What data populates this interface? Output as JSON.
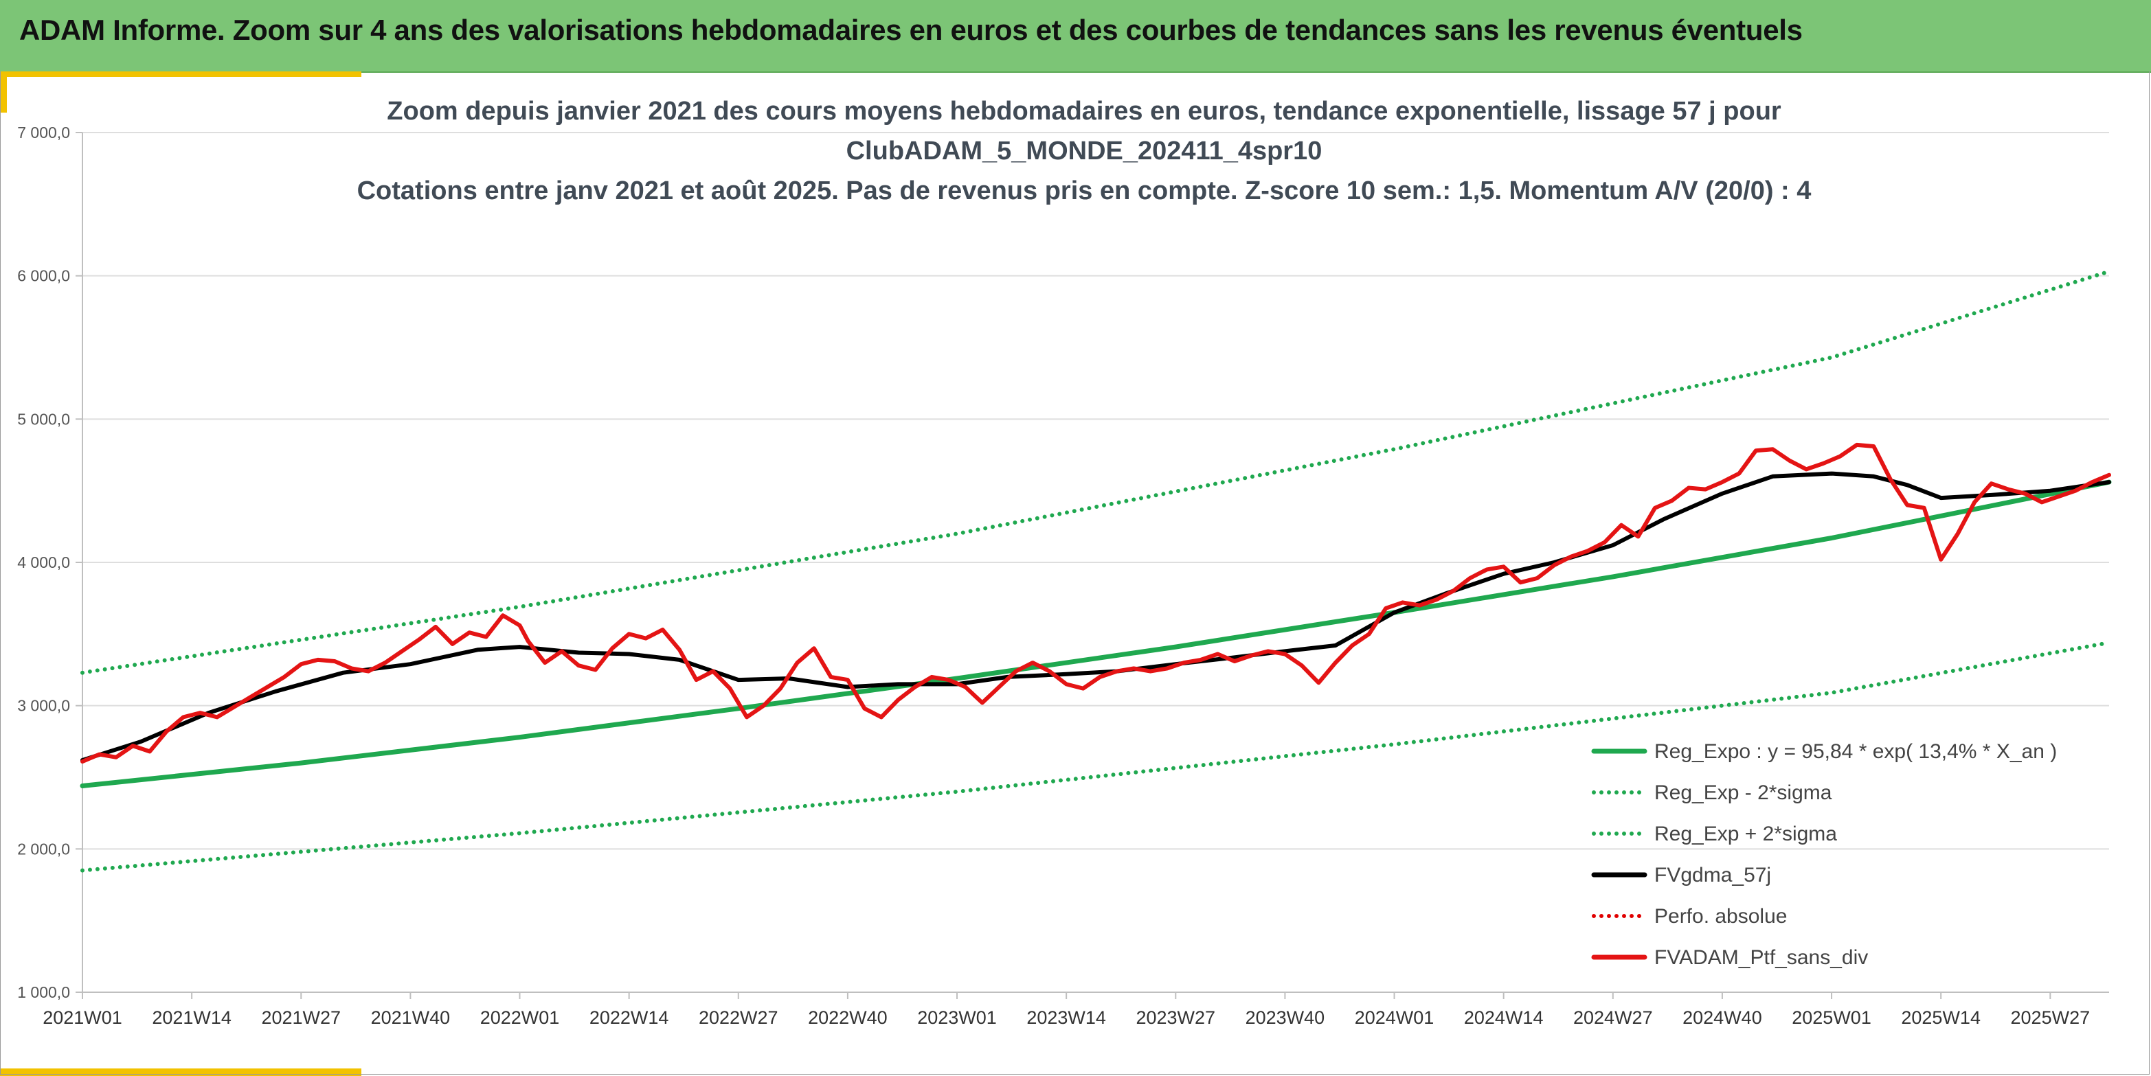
{
  "header": {
    "title": "ADAM Informe. Zoom sur 4 ans des valorisations hebdomadaires en euros et des courbes de tendances sans les revenus éventuels"
  },
  "chart_data": {
    "type": "line",
    "title_lines": [
      "Zoom depuis janvier 2021 des cours moyens hebdomadaires en euros, tendance exponentielle, lissage 57 j pour",
      "ClubADAM_5_MONDE_202411_4spr10",
      "Cotations entre janv 2021 et août 2025. Pas de revenus pris en compte. Z-score 10 sem.: 1,5. Momentum A/V (20/0) : 4"
    ],
    "xlabel": "",
    "ylabel": "",
    "ylim": [
      1000,
      7000
    ],
    "y_ticks": [
      "1 000,0",
      "2 000,0",
      "3 000,0",
      "4 000,0",
      "5 000,0",
      "6 000,0",
      "7 000,0"
    ],
    "x_ticks": [
      "2021W01",
      "2021W14",
      "2021W27",
      "2021W40",
      "2022W01",
      "2022W14",
      "2022W27",
      "2022W40",
      "2023W01",
      "2023W14",
      "2023W27",
      "2023W40",
      "2024W01",
      "2024W14",
      "2024W27",
      "2024W40",
      "2025W01",
      "2025W14",
      "2025W27"
    ],
    "x_start": "2021W01",
    "x_end": "2025W34",
    "grid": "horizontal",
    "legend_position": "bottom-right",
    "series": [
      {
        "name": "Reg_Expo : y = 95,84 * exp( 13,4% *  X_an )",
        "color": "#1fa84f",
        "style": "solid",
        "points": [
          [
            "2021W01",
            2440
          ],
          [
            "2021W27",
            2600
          ],
          [
            "2022W01",
            2780
          ],
          [
            "2022W27",
            2980
          ],
          [
            "2023W01",
            3190
          ],
          [
            "2023W27",
            3410
          ],
          [
            "2024W01",
            3650
          ],
          [
            "2024W27",
            3900
          ],
          [
            "2025W01",
            4170
          ],
          [
            "2025W34",
            4560
          ]
        ]
      },
      {
        "name": "Reg_Exp - 2*sigma",
        "color": "#1fa84f",
        "style": "dotted",
        "points": [
          [
            "2021W01",
            1850
          ],
          [
            "2022W01",
            2110
          ],
          [
            "2023W01",
            2400
          ],
          [
            "2024W01",
            2730
          ],
          [
            "2025W01",
            3090
          ],
          [
            "2025W34",
            3440
          ]
        ]
      },
      {
        "name": "Reg_Exp + 2*sigma",
        "color": "#1fa84f",
        "style": "dotted",
        "points": [
          [
            "2021W01",
            3230
          ],
          [
            "2022W01",
            3690
          ],
          [
            "2023W01",
            4200
          ],
          [
            "2024W01",
            4790
          ],
          [
            "2025W01",
            5430
          ],
          [
            "2025W34",
            6030
          ]
        ]
      },
      {
        "name": "FVgdma_57j",
        "color": "#000000",
        "style": "solid",
        "points": [
          [
            "2021W01",
            2620
          ],
          [
            "2021W08",
            2750
          ],
          [
            "2021W16",
            2950
          ],
          [
            "2021W24",
            3100
          ],
          [
            "2021W32",
            3230
          ],
          [
            "2021W40",
            3290
          ],
          [
            "2021W48",
            3390
          ],
          [
            "2022W01",
            3410
          ],
          [
            "2022W08",
            3370
          ],
          [
            "2022W14",
            3360
          ],
          [
            "2022W20",
            3320
          ],
          [
            "2022W27",
            3180
          ],
          [
            "2022W33",
            3190
          ],
          [
            "2022W40",
            3130
          ],
          [
            "2022W46",
            3150
          ],
          [
            "2023W01",
            3150
          ],
          [
            "2023W07",
            3200
          ],
          [
            "2023W14",
            3220
          ],
          [
            "2023W20",
            3240
          ],
          [
            "2023W27",
            3290
          ],
          [
            "2023W33",
            3330
          ],
          [
            "2023W40",
            3380
          ],
          [
            "2023W46",
            3420
          ],
          [
            "2024W01",
            3650
          ],
          [
            "2024W07",
            3780
          ],
          [
            "2024W14",
            3920
          ],
          [
            "2024W20",
            4000
          ],
          [
            "2024W27",
            4120
          ],
          [
            "2024W33",
            4300
          ],
          [
            "2024W40",
            4480
          ],
          [
            "2024W46",
            4600
          ],
          [
            "2025W01",
            4620
          ],
          [
            "2025W06",
            4600
          ],
          [
            "2025W10",
            4540
          ],
          [
            "2025W14",
            4450
          ],
          [
            "2025W20",
            4470
          ],
          [
            "2025W27",
            4500
          ],
          [
            "2025W34",
            4560
          ]
        ]
      },
      {
        "name": "Perfo. absolue",
        "color": "#e00000",
        "style": "dotted",
        "points": []
      },
      {
        "name": "FVADAM_Ptf_sans_div",
        "color": "#e41414",
        "style": "solid",
        "points": [
          [
            "2021W01",
            2610
          ],
          [
            "2021W03",
            2660
          ],
          [
            "2021W05",
            2640
          ],
          [
            "2021W07",
            2720
          ],
          [
            "2021W09",
            2680
          ],
          [
            "2021W11",
            2820
          ],
          [
            "2021W13",
            2920
          ],
          [
            "2021W15",
            2950
          ],
          [
            "2021W17",
            2920
          ],
          [
            "2021W19",
            2990
          ],
          [
            "2021W21",
            3060
          ],
          [
            "2021W23",
            3130
          ],
          [
            "2021W25",
            3200
          ],
          [
            "2021W27",
            3290
          ],
          [
            "2021W29",
            3320
          ],
          [
            "2021W31",
            3310
          ],
          [
            "2021W33",
            3260
          ],
          [
            "2021W35",
            3240
          ],
          [
            "2021W37",
            3300
          ],
          [
            "2021W39",
            3380
          ],
          [
            "2021W41",
            3460
          ],
          [
            "2021W43",
            3550
          ],
          [
            "2021W45",
            3430
          ],
          [
            "2021W47",
            3510
          ],
          [
            "2021W49",
            3480
          ],
          [
            "2021W51",
            3630
          ],
          [
            "2022W01",
            3560
          ],
          [
            "2022W02",
            3450
          ],
          [
            "2022W04",
            3300
          ],
          [
            "2022W06",
            3380
          ],
          [
            "2022W08",
            3280
          ],
          [
            "2022W10",
            3250
          ],
          [
            "2022W12",
            3400
          ],
          [
            "2022W14",
            3500
          ],
          [
            "2022W16",
            3470
          ],
          [
            "2022W18",
            3530
          ],
          [
            "2022W20",
            3390
          ],
          [
            "2022W22",
            3180
          ],
          [
            "2022W24",
            3240
          ],
          [
            "2022W26",
            3120
          ],
          [
            "2022W28",
            2920
          ],
          [
            "2022W30",
            3000
          ],
          [
            "2022W32",
            3120
          ],
          [
            "2022W34",
            3300
          ],
          [
            "2022W36",
            3400
          ],
          [
            "2022W38",
            3200
          ],
          [
            "2022W40",
            3180
          ],
          [
            "2022W42",
            2980
          ],
          [
            "2022W44",
            2920
          ],
          [
            "2022W46",
            3040
          ],
          [
            "2022W48",
            3130
          ],
          [
            "2022W50",
            3200
          ],
          [
            "2022W52",
            3180
          ],
          [
            "2023W02",
            3130
          ],
          [
            "2023W04",
            3020
          ],
          [
            "2023W06",
            3130
          ],
          [
            "2023W08",
            3240
          ],
          [
            "2023W10",
            3300
          ],
          [
            "2023W12",
            3240
          ],
          [
            "2023W14",
            3150
          ],
          [
            "2023W16",
            3120
          ],
          [
            "2023W18",
            3200
          ],
          [
            "2023W20",
            3240
          ],
          [
            "2023W22",
            3260
          ],
          [
            "2023W24",
            3240
          ],
          [
            "2023W26",
            3260
          ],
          [
            "2023W28",
            3300
          ],
          [
            "2023W30",
            3320
          ],
          [
            "2023W32",
            3360
          ],
          [
            "2023W34",
            3310
          ],
          [
            "2023W36",
            3350
          ],
          [
            "2023W38",
            3380
          ],
          [
            "2023W40",
            3360
          ],
          [
            "2023W42",
            3280
          ],
          [
            "2023W44",
            3160
          ],
          [
            "2023W46",
            3300
          ],
          [
            "2023W48",
            3420
          ],
          [
            "2023W50",
            3500
          ],
          [
            "2023W52",
            3680
          ],
          [
            "2024W02",
            3720
          ],
          [
            "2024W04",
            3700
          ],
          [
            "2024W06",
            3740
          ],
          [
            "2024W08",
            3800
          ],
          [
            "2024W10",
            3890
          ],
          [
            "2024W12",
            3950
          ],
          [
            "2024W14",
            3970
          ],
          [
            "2024W16",
            3860
          ],
          [
            "2024W18",
            3890
          ],
          [
            "2024W20",
            3980
          ],
          [
            "2024W22",
            4040
          ],
          [
            "2024W24",
            4080
          ],
          [
            "2024W26",
            4140
          ],
          [
            "2024W28",
            4260
          ],
          [
            "2024W30",
            4180
          ],
          [
            "2024W32",
            4380
          ],
          [
            "2024W34",
            4430
          ],
          [
            "2024W36",
            4520
          ],
          [
            "2024W38",
            4510
          ],
          [
            "2024W40",
            4560
          ],
          [
            "2024W42",
            4620
          ],
          [
            "2024W44",
            4780
          ],
          [
            "2024W46",
            4790
          ],
          [
            "2024W48",
            4710
          ],
          [
            "2024W50",
            4650
          ],
          [
            "2024W52",
            4690
          ],
          [
            "2025W02",
            4740
          ],
          [
            "2025W04",
            4820
          ],
          [
            "2025W06",
            4810
          ],
          [
            "2025W08",
            4580
          ],
          [
            "2025W10",
            4400
          ],
          [
            "2025W12",
            4380
          ],
          [
            "2025W14",
            4020
          ],
          [
            "2025W16",
            4200
          ],
          [
            "2025W18",
            4420
          ],
          [
            "2025W20",
            4550
          ],
          [
            "2025W22",
            4510
          ],
          [
            "2025W24",
            4480
          ],
          [
            "2025W26",
            4420
          ],
          [
            "2025W28",
            4460
          ],
          [
            "2025W30",
            4500
          ],
          [
            "2025W32",
            4560
          ],
          [
            "2025W34",
            4610
          ]
        ]
      }
    ]
  }
}
